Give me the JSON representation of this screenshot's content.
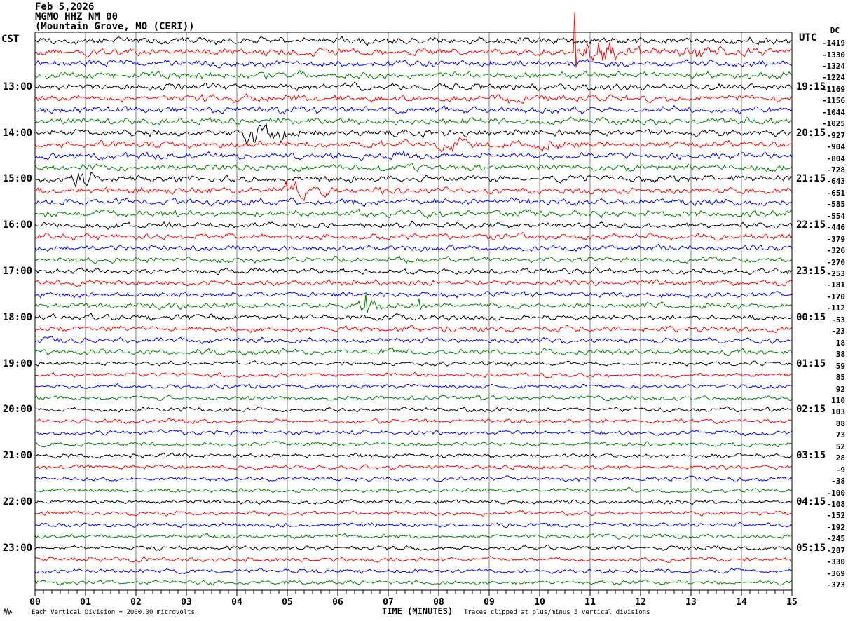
{
  "header": {
    "date": "Feb 5,2026",
    "station": "MGMO HHZ NM 00",
    "location": "(Mountain Grove, MO (CERI))"
  },
  "axes": {
    "left_header": "CST",
    "right_header": "UTC",
    "dc_header": "DC",
    "left_hour_labels": [
      "13:00",
      "14:00",
      "15:00",
      "16:00",
      "17:00",
      "18:00",
      "19:00",
      "20:00",
      "21:00",
      "22:00",
      "23:00"
    ],
    "right_hour_labels": [
      "19:15",
      "20:15",
      "21:15",
      "22:15",
      "23:15",
      "00:15",
      "01:15",
      "02:15",
      "03:15",
      "04:15",
      "05:15"
    ],
    "x_tick_labels": [
      "00",
      "01",
      "02",
      "03",
      "04",
      "05",
      "06",
      "07",
      "08",
      "09",
      "10",
      "11",
      "12",
      "13",
      "14",
      "15"
    ],
    "x_axis_title": "TIME (MINUTES)"
  },
  "footer": {
    "scale_note": "Each Vertical Division = 2000.00 microvolts",
    "clip_note": "Traces clipped at plus/minus 5 vertical divisions"
  },
  "chart_data": {
    "type": "helicorder-seismogram",
    "minutes_per_line": 15,
    "lines": 48,
    "line_start_cst": "12:00",
    "hour_label_row_start": 4,
    "hour_label_row_step": 4,
    "trace_color_cycle": [
      "#000000",
      "#ff0000",
      "#0000ff",
      "#008000"
    ],
    "grid_color": "#808080",
    "frame_color": "#000000",
    "dc_values": [
      -1419,
      -1330,
      -1324,
      -1224,
      -1169,
      -1156,
      -1044,
      -1025,
      -927,
      -904,
      -804,
      -728,
      -643,
      -651,
      -585,
      -554,
      -446,
      -379,
      -326,
      -270,
      -253,
      -181,
      -170,
      -112,
      -53,
      -23,
      18,
      38,
      59,
      85,
      92,
      110,
      103,
      88,
      73,
      52,
      28,
      -9,
      -38,
      -100,
      -108,
      -152,
      -192,
      -245,
      -287,
      -330,
      -369,
      -373
    ],
    "noise_amps": [
      3.2,
      3.2,
      3.2,
      3.2,
      3.2,
      3.2,
      3.2,
      3.2,
      3.2,
      3.2,
      3.2,
      3.2,
      3.2,
      3.2,
      3.2,
      3.2,
      2.7,
      2.7,
      2.7,
      2.7,
      2.7,
      2.7,
      2.7,
      2.7,
      2.7,
      2.7,
      2.7,
      2.7,
      2.1,
      2.1,
      2.1,
      2.1,
      2.1,
      2.1,
      2.1,
      2.1,
      2.1,
      2.1,
      2.1,
      2.1,
      2.1,
      2.1,
      2.1,
      2.1,
      2.1,
      2.1,
      2.1,
      2.1
    ],
    "events": {
      "1": [
        {
          "t0": 10.68,
          "t1": 12.6,
          "amp": 11
        },
        {
          "t0": 12.6,
          "t1": 15.01,
          "amp": 3.5
        }
      ],
      "5": [
        {
          "t0": 9.0,
          "t1": 9.8,
          "amp": 4
        }
      ],
      "8": [
        {
          "t0": 4.05,
          "t1": 5.6,
          "amp": 10
        }
      ],
      "9": [
        {
          "t0": 7.95,
          "t1": 8.8,
          "amp": 6
        },
        {
          "t0": 9.9,
          "t1": 10.7,
          "amp": 6
        }
      ],
      "10": [
        {
          "t0": 7.05,
          "t1": 7.8,
          "amp": 5
        }
      ],
      "12": [
        {
          "t0": 0.7,
          "t1": 1.45,
          "amp": 8
        }
      ],
      "13": [
        {
          "t0": 4.9,
          "t1": 6.15,
          "amp": 9
        }
      ],
      "23": [
        {
          "t0": 6.3,
          "t1": 7.2,
          "amp": 6
        }
      ]
    },
    "spikes": {
      "1": [
        {
          "t": 10.7,
          "up": 57,
          "down": 22
        }
      ],
      "23": [
        {
          "t": 6.55,
          "up": 16,
          "down": 10
        },
        {
          "t": 7.6,
          "up": 10,
          "down": 6
        }
      ]
    }
  }
}
